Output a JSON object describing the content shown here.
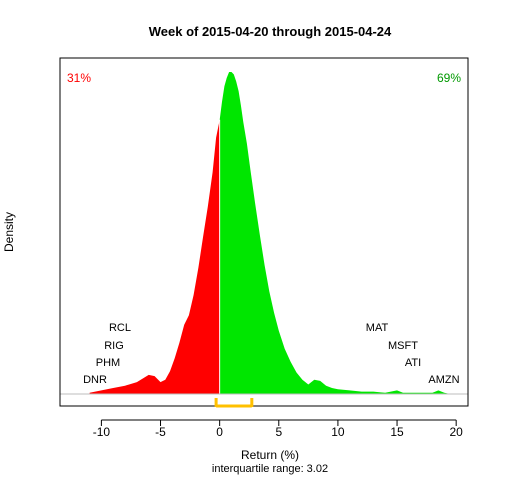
{
  "chart_data": {
    "type": "area",
    "title": "Week of 2015-04-20 through 2015-04-24",
    "xlabel": "Return (%)",
    "ylabel": "Density",
    "subtitle": "interquartile range: 3.02",
    "xlim": [
      -13.5,
      21.0
    ],
    "ylim": [
      0,
      0.27
    ],
    "x_ticks": [
      -10,
      -5,
      0,
      5,
      10,
      15,
      20
    ],
    "split_at": 0,
    "negative_share_label": "31%",
    "positive_share_label": "69%",
    "colors": {
      "negative": "#ff0000",
      "positive": "#00e600",
      "iqr": "#ffc000",
      "negative_text": "#ff0000",
      "positive_text": "#009900"
    },
    "iqr": {
      "low": -0.3,
      "high": 2.72
    },
    "density": {
      "x": [
        -11.0,
        -10.0,
        -9.0,
        -8.0,
        -7.0,
        -6.5,
        -6.0,
        -5.5,
        -5.0,
        -4.6,
        -4.2,
        -3.8,
        -3.4,
        -3.0,
        -2.6,
        -2.2,
        -1.8,
        -1.4,
        -1.0,
        -0.6,
        -0.3,
        0.0,
        0.2,
        0.4,
        0.6,
        0.8,
        1.0,
        1.2,
        1.4,
        1.6,
        1.8,
        2.0,
        2.3,
        2.6,
        3.0,
        3.4,
        3.8,
        4.2,
        4.6,
        5.0,
        5.5,
        6.0,
        6.5,
        7.0,
        7.5,
        8.0,
        8.5,
        9.0,
        9.5,
        10.0,
        11.0,
        12.0,
        13.0,
        14.0,
        15.0,
        15.5,
        16.0,
        17.0,
        18.0,
        18.5,
        19.0,
        19.5
      ],
      "y": [
        0.001,
        0.003,
        0.005,
        0.007,
        0.01,
        0.013,
        0.016,
        0.015,
        0.01,
        0.012,
        0.019,
        0.03,
        0.043,
        0.058,
        0.066,
        0.083,
        0.106,
        0.132,
        0.157,
        0.186,
        0.215,
        0.23,
        0.245,
        0.258,
        0.265,
        0.27,
        0.27,
        0.268,
        0.262,
        0.254,
        0.242,
        0.228,
        0.21,
        0.188,
        0.16,
        0.133,
        0.108,
        0.086,
        0.068,
        0.053,
        0.038,
        0.027,
        0.018,
        0.012,
        0.008,
        0.012,
        0.011,
        0.007,
        0.005,
        0.004,
        0.003,
        0.002,
        0.002,
        0.001,
        0.003,
        0.001,
        0.001,
        0.001,
        0.001,
        0.003,
        0.001,
        0.0
      ]
    },
    "labels_left": [
      "RCL",
      "RIG",
      "PHM",
      "DNR"
    ],
    "labels_right": [
      "MAT",
      "MSFT",
      "ATI",
      "AMZN"
    ]
  }
}
